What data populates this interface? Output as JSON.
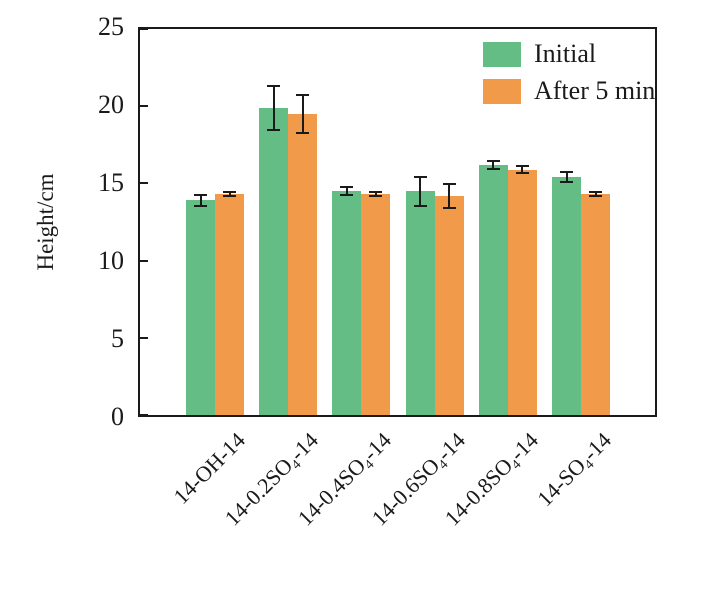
{
  "figure": {
    "background": "#ffffff",
    "axis_color": "#1a1a1a"
  },
  "chart_data": {
    "type": "bar",
    "title": "",
    "xlabel": "",
    "ylabel": "Height/cm",
    "ylim": [
      0,
      25
    ],
    "yticks": [
      0,
      5,
      10,
      15,
      20,
      25
    ],
    "grid": false,
    "legend_position": "top-right-inside",
    "error_bars": true,
    "error_bar_color": "#1a1a1a",
    "categories": [
      "14-OH-14",
      "14-0.2SO4-14",
      "14-0.4SO4-14",
      "14-0.6SO4-14",
      "14-0.8SO4-14",
      "14-SO4-14"
    ],
    "categories_rich": [
      [
        {
          "t": "14-OH-14"
        }
      ],
      [
        {
          "t": "14-0.2SO"
        },
        {
          "t": "4",
          "sub": true
        },
        {
          "t": "-14"
        }
      ],
      [
        {
          "t": "14-0.4SO"
        },
        {
          "t": "4",
          "sub": true
        },
        {
          "t": "-14"
        }
      ],
      [
        {
          "t": "14-0.6SO"
        },
        {
          "t": "4",
          "sub": true
        },
        {
          "t": "-14"
        }
      ],
      [
        {
          "t": "14-0.8SO"
        },
        {
          "t": "4",
          "sub": true
        },
        {
          "t": "-14"
        }
      ],
      [
        {
          "t": "14-SO"
        },
        {
          "t": "4",
          "sub": true
        },
        {
          "t": "-14"
        }
      ]
    ],
    "series": [
      {
        "name": "Initial",
        "color": "#63BD85",
        "values": [
          13.9,
          19.9,
          14.5,
          14.5,
          16.2,
          15.4
        ],
        "errors": [
          0.4,
          1.5,
          0.3,
          1.0,
          0.3,
          0.4
        ]
      },
      {
        "name": "After 5 min",
        "color": "#F09A4A",
        "values": [
          14.3,
          19.5,
          14.3,
          14.2,
          15.9,
          14.3
        ],
        "errors": [
          0.2,
          1.3,
          0.2,
          0.85,
          0.3,
          0.2
        ]
      }
    ]
  }
}
